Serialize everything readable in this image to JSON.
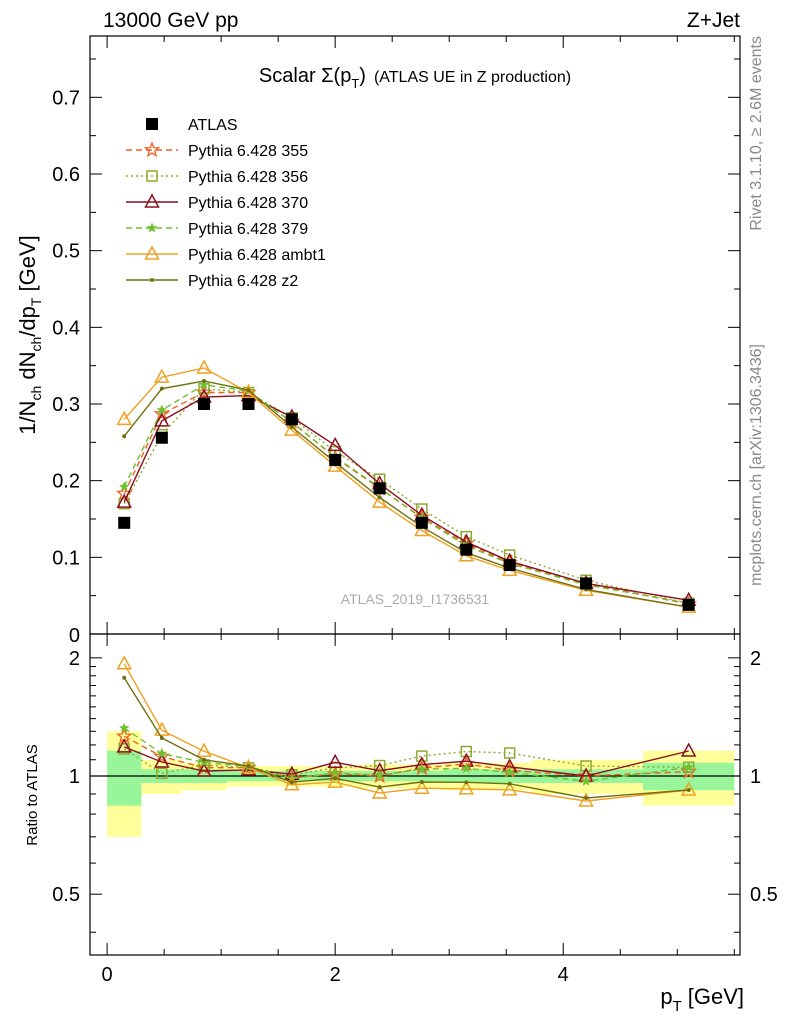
{
  "header": {
    "left": "13000 GeV pp",
    "right": "Z+Jet"
  },
  "side": {
    "rivet": "Rivet 3.1.10, ≥ 2.6M events",
    "mcplots": "mcplots.cern.ch [arXiv:1306.3436]"
  },
  "chart_data": {
    "type": "line",
    "title_main": "Scalar Σ(p",
    "title_sub": "T",
    "title_close": ")",
    "title_rest": "(ATLAS UE in Z production)",
    "analysis_tag": "ATLAS_2019_I1736531",
    "xlabel_main": "p",
    "xlabel_sub": "T",
    "xlabel_unit": "[GeV]",
    "ylabel_parts": [
      "1/N",
      "ch",
      " dN",
      "ch",
      "/dp",
      "T",
      " [GeV]"
    ],
    "ratio_ylabel": "Ratio to ATLAS",
    "xlim": [
      -0.15,
      5.55
    ],
    "ylim": [
      0,
      0.78
    ],
    "ratio_ylim": [
      0.35,
      2.3
    ],
    "xticks": [
      0,
      2,
      4
    ],
    "yticks": [
      0.1,
      0.2,
      0.3,
      0.4,
      0.5,
      0.6,
      0.7
    ],
    "yticks_labels": [
      "0.1",
      "0.2",
      "0.3",
      "0.4",
      "0.5",
      "0.6",
      "0.7"
    ],
    "y_zero_label": "0",
    "ratio_yticks": [
      0.5,
      1,
      2
    ],
    "ratio_yticks_labels": [
      "0.5",
      "1",
      "2"
    ],
    "legend_position": "top-left",
    "x": [
      0.15,
      0.48,
      0.85,
      1.24,
      1.62,
      2.0,
      2.39,
      2.76,
      3.15,
      3.53,
      4.2,
      5.1
    ],
    "bin_edges": [
      0.0,
      0.3,
      0.65,
      1.05,
      1.45,
      1.8,
      2.2,
      2.58,
      2.95,
      3.35,
      3.72,
      4.7,
      5.5
    ],
    "band_inner": [
      0.16,
      0.04,
      0.04,
      0.03,
      0.03,
      0.03,
      0.03,
      0.03,
      0.04,
      0.04,
      0.04,
      0.08
    ],
    "band_outer": [
      0.3,
      0.1,
      0.08,
      0.06,
      0.06,
      0.06,
      0.07,
      0.07,
      0.08,
      0.08,
      0.1,
      0.16
    ],
    "data": {
      "name": "ATLAS",
      "values": [
        0.145,
        0.256,
        0.3,
        0.3,
        0.28,
        0.227,
        0.19,
        0.145,
        0.11,
        0.09,
        0.066,
        0.038
      ]
    },
    "series": [
      {
        "name": "Pythia 6.428 355",
        "color": "#f06020",
        "dash": "6,4",
        "marker": "star",
        "values": [
          0.183,
          0.287,
          0.315,
          0.315,
          0.277,
          0.23,
          0.19,
          0.152,
          0.118,
          0.093,
          0.066,
          0.039
        ]
      },
      {
        "name": "Pythia 6.428 356",
        "color": "#90a830",
        "dash": "2,3",
        "marker": "square-open",
        "values": [
          0.17,
          0.26,
          0.32,
          0.315,
          0.282,
          0.238,
          0.202,
          0.163,
          0.127,
          0.103,
          0.07,
          0.04
        ]
      },
      {
        "name": "Pythia 6.428 370",
        "color": "#8b1020",
        "dash": "",
        "marker": "triangle-open",
        "values": [
          0.172,
          0.278,
          0.309,
          0.311,
          0.283,
          0.246,
          0.196,
          0.155,
          0.12,
          0.095,
          0.066,
          0.044
        ]
      },
      {
        "name": "Pythia 6.428 379",
        "color": "#70c030",
        "dash": "6,4",
        "marker": "star-small",
        "values": [
          0.192,
          0.292,
          0.325,
          0.317,
          0.276,
          0.231,
          0.191,
          0.151,
          0.115,
          0.092,
          0.064,
          0.04
        ]
      },
      {
        "name": "Pythia 6.428 ambt1",
        "color": "#f0a020",
        "dash": "",
        "marker": "triangle-open",
        "values": [
          0.28,
          0.335,
          0.347,
          0.315,
          0.266,
          0.219,
          0.172,
          0.135,
          0.102,
          0.083,
          0.057,
          0.035
        ]
      },
      {
        "name": "Pythia 6.428 z2",
        "color": "#707010",
        "dash": "",
        "marker": "dot",
        "values": [
          0.258,
          0.32,
          0.33,
          0.318,
          0.27,
          0.224,
          0.178,
          0.14,
          0.106,
          0.086,
          0.058,
          0.035
        ]
      }
    ]
  }
}
